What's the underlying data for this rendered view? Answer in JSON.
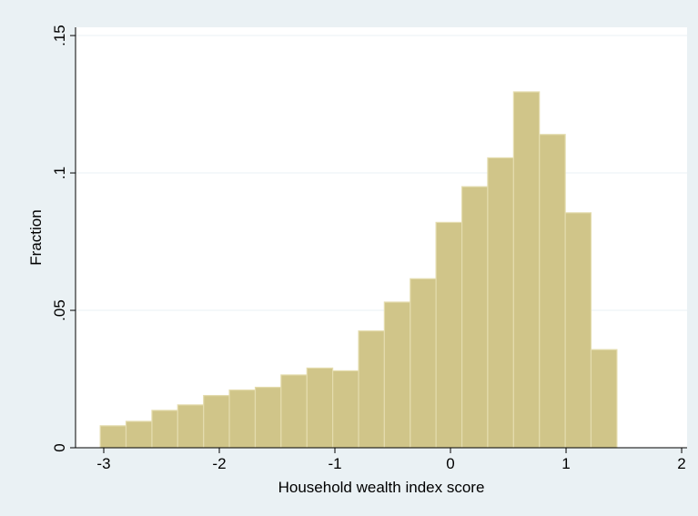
{
  "chart_data": {
    "type": "histogram",
    "x_label": "Household wealth index score",
    "y_label": "Fraction",
    "bins": [
      -3.03,
      -2.807,
      -2.583,
      -2.36,
      -2.136,
      -1.913,
      -1.689,
      -1.466,
      -1.242,
      -1.019,
      -0.795,
      -0.572,
      -0.348,
      -0.125,
      0.099,
      0.322,
      0.546,
      0.769,
      0.993,
      1.216,
      1.44
    ],
    "values": [
      0.008,
      0.0096,
      0.0136,
      0.0156,
      0.019,
      0.021,
      0.022,
      0.0265,
      0.029,
      0.028,
      0.0425,
      0.053,
      0.0615,
      0.082,
      0.095,
      0.1055,
      0.1295,
      0.114,
      0.0855,
      0.0357
    ],
    "color": "#d0c589",
    "xlim": [
      -3.244,
      2.047
    ],
    "ylim": [
      0,
      0.153
    ],
    "xticks": [
      -3,
      -2,
      -1,
      0,
      1,
      2
    ],
    "yticks": [
      0,
      {
        "value": 0.05,
        "label": ".05"
      },
      {
        "value": 0.1,
        "label": ".1"
      },
      {
        "value": 0.15,
        "label": ".15"
      }
    ],
    "grid": true
  }
}
